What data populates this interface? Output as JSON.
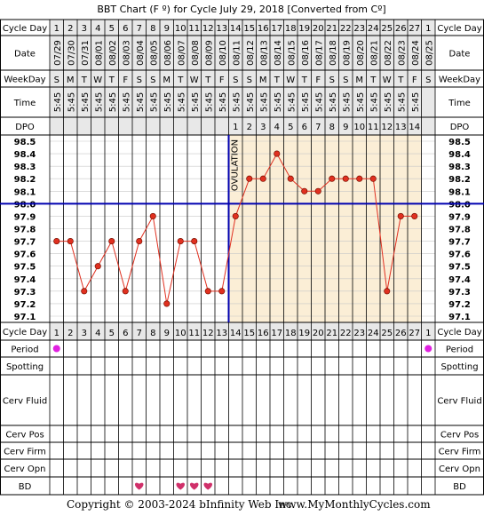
{
  "title": "BBT Chart (F º) for Cycle July 29, 2018  [Converted from Cº]",
  "row_labels": {
    "cycle_day": "Cycle Day",
    "date": "Date",
    "weekday": "WeekDay",
    "time": "Time",
    "dpo": "DPO",
    "period": "Period",
    "spotting": "Spotting",
    "cerv_fluid": "Cerv Fluid",
    "cerv_pos": "Cerv Pos",
    "cerv_firm": "Cerv Firm",
    "cerv_opn": "Cerv Opn",
    "bd": "BD"
  },
  "ovulation_label": "OVULATION",
  "footer": {
    "copyright": "Copyright © 2003-2024 bInfinity Web Inc.",
    "site": "www.MyMonthlyCycles.com"
  },
  "colors": {
    "temp_line": "#e03020",
    "temp_point": "#e03020",
    "coverline": "#0000b0",
    "ovulation_line": "#0000b0",
    "luteal_shade": "#fbeed6",
    "grid": "#c8c8c8",
    "header_bg": "#e8e8e8",
    "period_dot": "#e020e0",
    "bd_heart": "#d0306a"
  },
  "chart_data": {
    "type": "line",
    "cycle_days": [
      "1",
      "2",
      "3",
      "4",
      "5",
      "6",
      "7",
      "8",
      "9",
      "10",
      "11",
      "12",
      "13",
      "14",
      "15",
      "16",
      "17",
      "18",
      "19",
      "20",
      "21",
      "22",
      "23",
      "24",
      "25",
      "26",
      "27",
      "1"
    ],
    "dates": [
      "07/29",
      "07/30",
      "07/31",
      "08/01",
      "08/02",
      "08/03",
      "08/04",
      "08/05",
      "08/06",
      "08/07",
      "08/08",
      "08/09",
      "08/10",
      "08/11",
      "08/12",
      "08/13",
      "08/14",
      "08/15",
      "08/16",
      "08/17",
      "08/18",
      "08/19",
      "08/20",
      "08/21",
      "08/22",
      "08/23",
      "08/24",
      "08/25"
    ],
    "weekdays": [
      "S",
      "M",
      "T",
      "W",
      "T",
      "F",
      "S",
      "S",
      "M",
      "T",
      "W",
      "T",
      "F",
      "S",
      "S",
      "M",
      "T",
      "W",
      "T",
      "F",
      "S",
      "S",
      "M",
      "T",
      "W",
      "T",
      "F",
      "S"
    ],
    "times": [
      "5:45",
      "5:45",
      "5:45",
      "5:45",
      "5:45",
      "5:45",
      "5:45",
      "5:45",
      "5:45",
      "5:45",
      "5:45",
      "5:45",
      "5:45",
      "5:45",
      "5:45",
      "5:45",
      "5:45",
      "5:45",
      "5:45",
      "5:45",
      "5:45",
      "5:45",
      "5:45",
      "5:45",
      "5:45",
      "5:45",
      "5:45",
      ""
    ],
    "dpo": [
      "",
      "",
      "",
      "",
      "",
      "",
      "",
      "",
      "",
      "",
      "",
      "",
      "",
      "1",
      "2",
      "3",
      "4",
      "5",
      "6",
      "7",
      "8",
      "9",
      "10",
      "11",
      "12",
      "13",
      "14",
      ""
    ],
    "temperatures": [
      97.7,
      97.7,
      97.3,
      97.5,
      97.7,
      97.3,
      97.7,
      97.9,
      97.2,
      97.7,
      97.7,
      97.3,
      97.3,
      97.9,
      98.2,
      98.2,
      98.4,
      98.2,
      98.1,
      98.1,
      98.2,
      98.2,
      98.2,
      98.2,
      97.3,
      97.9,
      97.9,
      null
    ],
    "y_ticks": [
      "98.5",
      "98.4",
      "98.3",
      "98.2",
      "98.1",
      "98.0",
      "97.9",
      "97.8",
      "97.7",
      "97.6",
      "97.5",
      "97.4",
      "97.3",
      "97.2",
      "97.1"
    ],
    "ylim": [
      97.1,
      98.5
    ],
    "coverline": 98.0,
    "ovulation_after_day_index": 13,
    "period_days": [
      1,
      28
    ],
    "bd_days": [
      7,
      10,
      11,
      12
    ]
  }
}
